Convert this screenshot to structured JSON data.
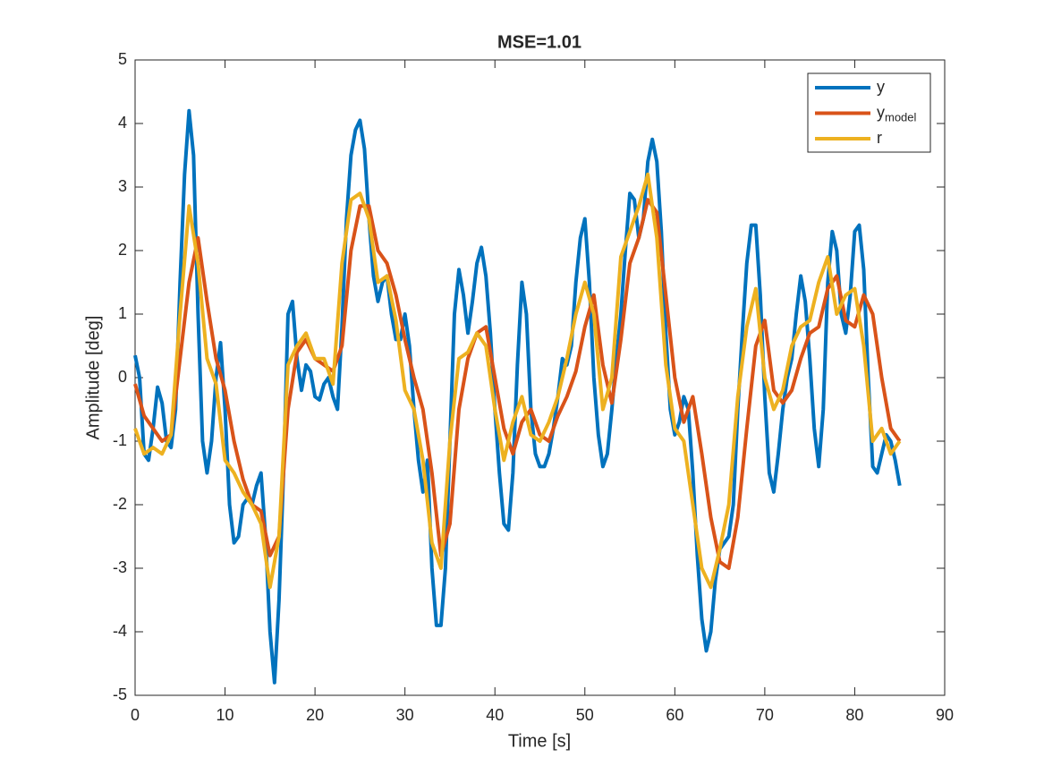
{
  "chart_data": {
    "type": "line",
    "title": "MSE=1.01",
    "x_label": "Time [s]",
    "y_label": "Amplitude [deg]",
    "xlim": [
      0,
      90
    ],
    "ylim": [
      -5,
      5
    ],
    "xticks": [
      0,
      10,
      20,
      30,
      40,
      50,
      60,
      70,
      80,
      90
    ],
    "yticks": [
      -5,
      -4,
      -3,
      -2,
      -1,
      0,
      1,
      2,
      3,
      4,
      5
    ],
    "grid": false,
    "legend_position": "top-right",
    "series": [
      {
        "name": "y",
        "color": "#0072BD",
        "x": [
          0,
          0.5,
          1,
          1.5,
          2,
          2.5,
          3,
          3.5,
          4,
          4.5,
          5,
          5.5,
          6,
          6.5,
          7,
          7.5,
          8,
          8.5,
          9,
          9.5,
          10,
          10.5,
          11,
          11.5,
          12,
          12.5,
          13,
          13.5,
          14,
          14.5,
          15,
          15.5,
          16,
          16.5,
          17,
          17.5,
          18,
          18.5,
          19,
          19.5,
          20,
          20.5,
          21,
          21.5,
          22,
          22.5,
          23,
          23.5,
          24,
          24.5,
          25,
          25.5,
          26,
          26.5,
          27,
          27.5,
          28,
          28.5,
          29,
          29.5,
          30,
          30.5,
          31,
          31.5,
          32,
          32.5,
          33,
          33.5,
          34,
          34.5,
          35,
          35.5,
          36,
          36.5,
          37,
          37.5,
          38,
          38.5,
          39,
          39.5,
          40,
          40.5,
          41,
          41.5,
          42,
          42.5,
          43,
          43.5,
          44,
          44.5,
          45,
          45.5,
          46,
          46.5,
          47,
          47.5,
          48,
          48.5,
          49,
          49.5,
          50,
          50.5,
          51,
          51.5,
          52,
          52.5,
          53,
          53.5,
          54,
          54.5,
          55,
          55.5,
          56,
          56.5,
          57,
          57.5,
          58,
          58.5,
          59,
          59.5,
          60,
          60.5,
          61,
          61.5,
          62,
          62.5,
          63,
          63.5,
          64,
          64.5,
          65,
          65.5,
          66,
          66.5,
          67,
          67.5,
          68,
          68.5,
          69,
          69.5,
          70,
          70.5,
          71,
          71.5,
          72,
          72.5,
          73,
          73.5,
          74,
          74.5,
          75,
          75.5,
          76,
          76.5,
          77,
          77.5,
          78,
          78.5,
          79,
          79.5,
          80,
          80.5,
          81,
          81.5,
          82,
          82.5,
          83,
          83.5,
          84,
          84.5,
          85
        ],
        "values": [
          0.35,
          0,
          -1.2,
          -1.3,
          -0.8,
          -0.15,
          -0.4,
          -1.0,
          -1.1,
          -0.5,
          1.5,
          3.2,
          4.2,
          3.5,
          1.0,
          -1.0,
          -1.5,
          -1.0,
          0.0,
          0.55,
          -0.5,
          -2.0,
          -2.6,
          -2.5,
          -2.0,
          -1.9,
          -2.0,
          -1.7,
          -1.5,
          -2.5,
          -4.0,
          -4.8,
          -3.5,
          -1.5,
          1.0,
          1.2,
          0.3,
          -0.2,
          0.2,
          0.1,
          -0.3,
          -0.35,
          -0.1,
          0.0,
          -0.3,
          -0.5,
          0.8,
          2.5,
          3.5,
          3.9,
          4.05,
          3.6,
          2.5,
          1.6,
          1.2,
          1.5,
          1.6,
          1.0,
          0.6,
          0.6,
          1.0,
          0.5,
          -0.5,
          -1.3,
          -1.8,
          -1.3,
          -3.0,
          -3.9,
          -3.9,
          -3.0,
          -1.0,
          1.0,
          1.7,
          1.3,
          0.7,
          1.2,
          1.8,
          2.05,
          1.6,
          0.7,
          -0.5,
          -1.5,
          -2.3,
          -2.4,
          -1.5,
          0.2,
          1.5,
          1.0,
          -0.5,
          -1.2,
          -1.4,
          -1.4,
          -1.2,
          -0.8,
          -0.3,
          0.3,
          0.2,
          0.5,
          1.5,
          2.2,
          2.5,
          1.5,
          0.0,
          -0.9,
          -1.4,
          -1.2,
          -0.5,
          0.3,
          1.0,
          2.0,
          2.9,
          2.8,
          2.2,
          2.5,
          3.4,
          3.75,
          3.4,
          2.3,
          0.7,
          -0.5,
          -0.9,
          -0.7,
          -0.3,
          -0.5,
          -1.5,
          -2.8,
          -3.8,
          -4.3,
          -4.0,
          -3.2,
          -2.7,
          -2.6,
          -2.5,
          -2.0,
          -0.5,
          0.7,
          1.8,
          2.4,
          2.4,
          1.3,
          -0.3,
          -1.5,
          -1.8,
          -1.2,
          -0.5,
          0.0,
          0.3,
          1.0,
          1.6,
          1.2,
          0.3,
          -0.8,
          -1.4,
          -0.5,
          1.5,
          2.3,
          2.0,
          1.0,
          0.7,
          1.3,
          2.3,
          2.4,
          1.7,
          0.0,
          -1.4,
          -1.5,
          -1.2,
          -0.9,
          -1.0,
          -1.3,
          -1.7
        ]
      },
      {
        "name": "y",
        "name_subscript": "model",
        "color": "#D95319",
        "x": [
          0,
          1,
          2,
          3,
          4,
          5,
          6,
          7,
          8,
          9,
          10,
          11,
          12,
          13,
          14,
          15,
          16,
          17,
          18,
          19,
          20,
          21,
          22,
          23,
          24,
          25,
          26,
          27,
          28,
          29,
          30,
          31,
          32,
          33,
          34,
          35,
          36,
          37,
          38,
          39,
          40,
          41,
          42,
          43,
          44,
          45,
          46,
          47,
          48,
          49,
          50,
          51,
          52,
          53,
          54,
          55,
          56,
          57,
          58,
          59,
          60,
          61,
          62,
          63,
          64,
          65,
          66,
          67,
          68,
          69,
          70,
          71,
          72,
          73,
          74,
          75,
          76,
          77,
          78,
          79,
          80,
          81,
          82,
          83,
          84,
          85
        ],
        "values": [
          -0.1,
          -0.6,
          -0.8,
          -1.0,
          -0.9,
          0.3,
          1.5,
          2.2,
          1.2,
          0.3,
          -0.2,
          -1.0,
          -1.6,
          -2.0,
          -2.1,
          -2.8,
          -2.5,
          -0.5,
          0.4,
          0.6,
          0.3,
          0.2,
          0.1,
          0.5,
          2.0,
          2.7,
          2.7,
          2.0,
          1.8,
          1.3,
          0.6,
          0.0,
          -0.5,
          -1.5,
          -2.8,
          -2.3,
          -0.5,
          0.3,
          0.7,
          0.8,
          0.0,
          -0.8,
          -1.2,
          -0.7,
          -0.5,
          -0.9,
          -1.0,
          -0.6,
          -0.3,
          0.1,
          0.8,
          1.3,
          0.2,
          -0.4,
          0.6,
          1.8,
          2.2,
          2.8,
          2.6,
          1.3,
          0.0,
          -0.7,
          -0.3,
          -1.2,
          -2.2,
          -2.9,
          -3.0,
          -2.2,
          -0.8,
          0.5,
          0.9,
          -0.2,
          -0.4,
          -0.2,
          0.3,
          0.7,
          0.8,
          1.4,
          1.6,
          0.9,
          0.8,
          1.3,
          1.0,
          0.0,
          -0.8,
          -1.0
        ]
      },
      {
        "name": "r",
        "color": "#EDB120",
        "x": [
          0,
          1,
          2,
          3,
          4,
          5,
          6,
          7,
          8,
          9,
          10,
          11,
          12,
          13,
          14,
          15,
          16,
          17,
          18,
          19,
          20,
          21,
          22,
          23,
          24,
          25,
          26,
          27,
          28,
          29,
          30,
          31,
          32,
          33,
          34,
          35,
          36,
          37,
          38,
          39,
          40,
          41,
          42,
          43,
          44,
          45,
          46,
          47,
          48,
          49,
          50,
          51,
          52,
          53,
          54,
          55,
          56,
          57,
          58,
          59,
          60,
          61,
          62,
          63,
          64,
          65,
          66,
          67,
          68,
          69,
          70,
          71,
          72,
          73,
          74,
          75,
          76,
          77,
          78,
          79,
          80,
          81,
          82,
          83,
          84,
          85
        ],
        "values": [
          -0.8,
          -1.2,
          -1.1,
          -1.2,
          -0.9,
          1.0,
          2.7,
          1.8,
          0.3,
          -0.1,
          -1.3,
          -1.5,
          -1.8,
          -2.0,
          -2.3,
          -3.3,
          -2.5,
          0.2,
          0.5,
          0.7,
          0.3,
          0.3,
          -0.1,
          1.8,
          2.8,
          2.9,
          2.5,
          1.5,
          1.6,
          0.9,
          -0.2,
          -0.5,
          -1.3,
          -2.6,
          -3.0,
          -1.0,
          0.3,
          0.4,
          0.7,
          0.5,
          -0.5,
          -1.3,
          -0.7,
          -0.3,
          -0.9,
          -1.0,
          -0.7,
          -0.3,
          0.3,
          1.0,
          1.5,
          1.0,
          -0.5,
          0.0,
          1.9,
          2.3,
          2.7,
          3.2,
          2.2,
          0.2,
          -0.8,
          -1.0,
          -2.0,
          -3.0,
          -3.3,
          -2.7,
          -2.0,
          -0.3,
          0.8,
          1.4,
          0.0,
          -0.5,
          -0.2,
          0.5,
          0.8,
          0.9,
          1.5,
          1.9,
          1.0,
          1.3,
          1.4,
          0.5,
          -1.0,
          -0.8,
          -1.2,
          -1.0
        ]
      }
    ]
  }
}
